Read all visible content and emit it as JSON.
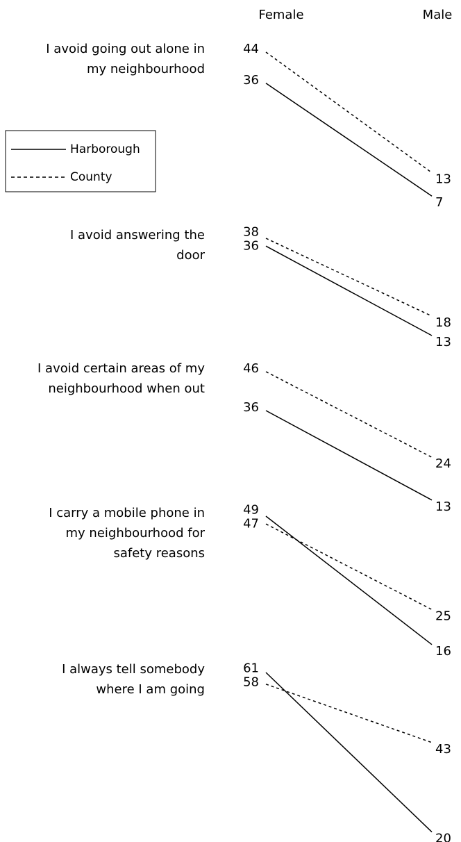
{
  "chart_data": {
    "type": "slope",
    "categories": [
      "Female",
      "Male"
    ],
    "series": [
      {
        "name": "Harborough",
        "color": "#000000",
        "dash": "solid"
      },
      {
        "name": "County",
        "color": "#000000",
        "dash": "dotted"
      }
    ],
    "panels": [
      {
        "label": [
          "I avoid going out alone in",
          "my neighbourhood"
        ],
        "values": [
          [
            36,
            7
          ],
          [
            44,
            13
          ]
        ]
      },
      {
        "label": [
          "I avoid answering the",
          "door"
        ],
        "values": [
          [
            36,
            13
          ],
          [
            38,
            18
          ]
        ]
      },
      {
        "label": [
          "I avoid certain areas of my",
          "neighbourhood when out"
        ],
        "values": [
          [
            36,
            13
          ],
          [
            46,
            24
          ]
        ]
      },
      {
        "label": [
          "I carry a mobile phone in",
          "my neighbourhood for",
          "safety reasons"
        ],
        "values": [
          [
            49,
            16
          ],
          [
            47,
            25
          ]
        ]
      },
      {
        "label": [
          "I always tell somebody",
          "where I am going"
        ],
        "values": [
          [
            61,
            20
          ],
          [
            58,
            43
          ]
        ]
      }
    ],
    "legend": "left"
  }
}
